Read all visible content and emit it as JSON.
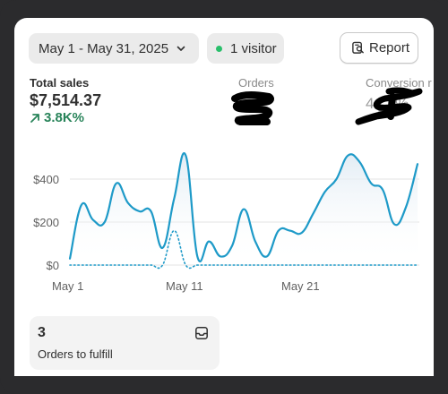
{
  "filters": {
    "date_range": "May 1 - May 31, 2025",
    "visitors": "1 visitor",
    "report_label": "Report"
  },
  "metrics": {
    "total_sales_label": "Total sales",
    "total_sales_value": "$7,514.37",
    "total_sales_change": "3.8K%",
    "orders_label": "Orders",
    "conversion_label": "Conversion r",
    "conversion_value": "4.__%"
  },
  "chart_data": {
    "type": "line",
    "x_tick_labels": [
      "May 1",
      "May 11",
      "May 21"
    ],
    "y_tick_labels": [
      "$400",
      "$200",
      "$0"
    ],
    "ylim": [
      0,
      500
    ],
    "grid": true,
    "series": [
      {
        "style": "solid",
        "color": "#1e9ac8",
        "x": [
          0,
          1,
          2,
          3,
          4,
          5,
          6,
          7,
          8,
          9,
          10,
          11,
          12,
          13,
          14,
          15,
          16,
          17,
          18,
          19,
          20,
          21,
          22,
          23,
          24,
          25,
          26,
          27,
          28,
          29,
          30
        ],
        "values": [
          30,
          280,
          210,
          200,
          380,
          290,
          250,
          250,
          80,
          310,
          510,
          40,
          110,
          40,
          90,
          260,
          110,
          40,
          160,
          160,
          150,
          240,
          340,
          400,
          510,
          480,
          380,
          350,
          190,
          270,
          470
        ]
      },
      {
        "style": "dotted",
        "color": "#1e9ac8",
        "x": [
          0,
          1,
          2,
          3,
          4,
          5,
          6,
          7,
          8,
          9,
          10,
          11,
          12,
          13,
          14,
          15,
          16,
          17,
          18,
          19,
          20,
          21,
          22,
          23,
          24,
          25,
          26,
          27,
          28,
          29,
          30
        ],
        "values": [
          0,
          0,
          0,
          0,
          0,
          0,
          0,
          0,
          0,
          160,
          0,
          0,
          0,
          0,
          0,
          0,
          0,
          0,
          0,
          0,
          0,
          0,
          0,
          0,
          0,
          0,
          0,
          0,
          0,
          0,
          0
        ]
      }
    ]
  },
  "fulfill": {
    "count": "3",
    "label": "Orders to fulfill"
  }
}
